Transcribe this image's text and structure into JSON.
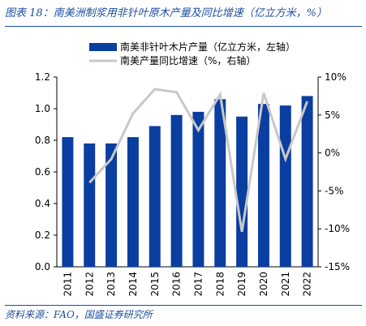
{
  "figure_title": "图表 18：南美洲制浆用非针叶原木产量及同比增速（亿立方米，%）",
  "source_note": "资料来源：FAO，国盛证券研究所",
  "chart_data": {
    "type": "bar+line",
    "categories": [
      "2011",
      "2012",
      "2013",
      "2014",
      "2015",
      "2016",
      "2017",
      "2018",
      "2019",
      "2020",
      "2021",
      "2022"
    ],
    "series": [
      {
        "name": "南美非针叶木片产量（亿立方米，左轴）",
        "type": "bar",
        "axis": "left",
        "color": "#0a3ea0",
        "values": [
          0.82,
          0.78,
          0.78,
          0.82,
          0.89,
          0.96,
          0.98,
          1.06,
          0.95,
          1.03,
          1.02,
          1.08
        ]
      },
      {
        "name": "南美产量同比增速（%，右轴）",
        "type": "line",
        "axis": "right",
        "color": "#c8c8c8",
        "values": [
          null,
          -3.9,
          -0.8,
          5.2,
          8.4,
          8.0,
          3.0,
          7.7,
          -10.4,
          7.9,
          -0.8,
          6.8
        ]
      }
    ],
    "y_left": {
      "ticks": [
        "0.0",
        "0.2",
        "0.4",
        "0.6",
        "0.8",
        "1.0",
        "1.2"
      ],
      "min": 0,
      "max": 1.2
    },
    "y_right": {
      "ticks": [
        "-15%",
        "-10%",
        "-5%",
        "0%",
        "5%",
        "10%"
      ],
      "min": -15,
      "max": 10
    },
    "legend_position": "top",
    "grid": false
  }
}
